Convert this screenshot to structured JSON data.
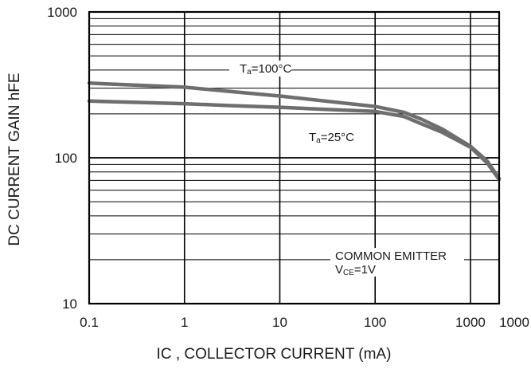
{
  "chart_data": {
    "type": "line",
    "x_scale": "log",
    "y_scale": "log",
    "xlim": [
      0.1,
      2000
    ],
    "ylim": [
      10,
      1000
    ],
    "xlabel": "IC , COLLECTOR CURRENT (mA)",
    "ylabel": "DC CURRENT GAIN hFE",
    "x_ticks": [
      "0.1",
      "1",
      "10",
      "100",
      "1000",
      "1000"
    ],
    "y_ticks": [
      "10",
      "100",
      "1000"
    ],
    "grid": true,
    "series": [
      {
        "name": "Ta=100°C",
        "color": "#6e6e6e",
        "points": [
          [
            0.1,
            325
          ],
          [
            0.3,
            315
          ],
          [
            1,
            305
          ],
          [
            3,
            285
          ],
          [
            10,
            265
          ],
          [
            30,
            245
          ],
          [
            100,
            225
          ],
          [
            200,
            205
          ],
          [
            300,
            185
          ],
          [
            500,
            158
          ],
          [
            1000,
            120
          ],
          [
            1500,
            95
          ],
          [
            2000,
            72
          ]
        ]
      },
      {
        "name": "Ta=25°C",
        "color": "#6e6e6e",
        "points": [
          [
            0.1,
            245
          ],
          [
            0.3,
            240
          ],
          [
            1,
            235
          ],
          [
            3,
            228
          ],
          [
            10,
            222
          ],
          [
            30,
            215
          ],
          [
            100,
            208
          ],
          [
            200,
            192
          ],
          [
            300,
            172
          ],
          [
            500,
            150
          ],
          [
            1000,
            118
          ],
          [
            1500,
            92
          ],
          [
            2000,
            71
          ]
        ]
      }
    ],
    "annotations": [
      {
        "base": "T",
        "sub": "a",
        "rest": "=100°C"
      },
      {
        "base": "T",
        "sub": "a",
        "rest": "=25°C"
      },
      {
        "text": "COMMON EMITTER"
      },
      {
        "base": "V",
        "sub": "CE",
        "rest": "=1V"
      }
    ]
  }
}
